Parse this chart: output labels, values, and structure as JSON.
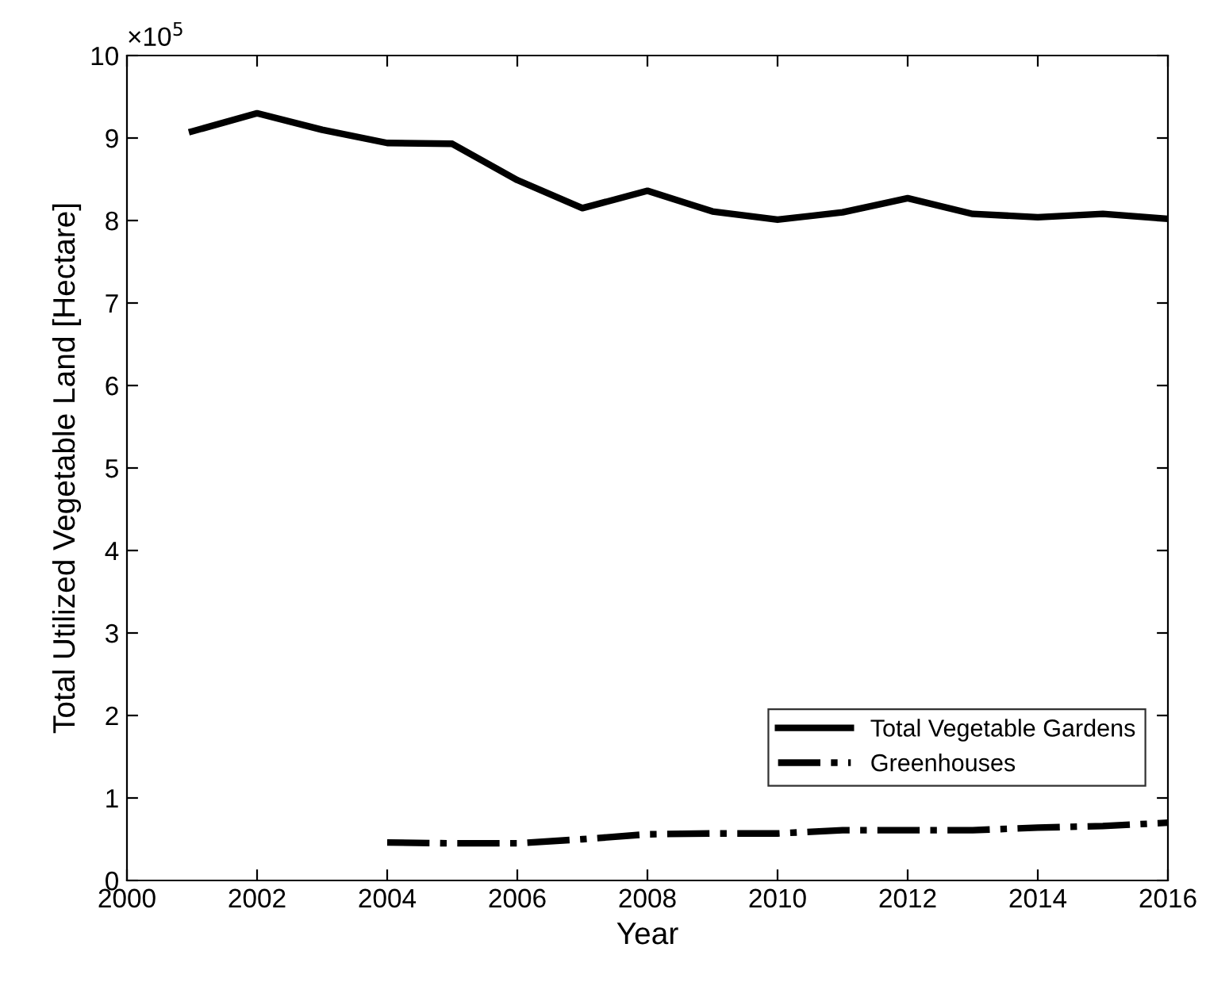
{
  "chart_data": {
    "type": "line",
    "xlabel": "Year",
    "ylabel": "Total Utilized Vegetable Land [Hectare]",
    "annotations": [
      "×10$^{5}$"
    ],
    "xlim": [
      2000,
      2016
    ],
    "xticks": [
      2000,
      2002,
      2004,
      2006,
      2008,
      2010,
      2012,
      2014,
      2016
    ],
    "ylim": [
      0,
      10
    ],
    "yticks": [
      0,
      1,
      2,
      3,
      4,
      5,
      6,
      7,
      8,
      9,
      10
    ],
    "grid": false,
    "legend": "bottom right",
    "marker": "none",
    "series": [
      {
        "name": "Total Vegetable Gardens",
        "color": "#000000",
        "line_style": "solid",
        "x": [
          2001,
          2002,
          2003,
          2004,
          2005,
          2006,
          2007,
          2008,
          2009,
          2010,
          2011,
          2012,
          2013,
          2014,
          2015,
          2016
        ],
        "values": [
          9.08,
          9.3,
          9.1,
          8.94,
          8.93,
          8.49,
          8.15,
          8.36,
          8.11,
          8.01,
          8.1,
          8.27,
          8.08,
          8.04,
          8.08,
          8.02
        ]
      },
      {
        "name": "Greenhouses",
        "color": "#000000",
        "line_style": "dashdot",
        "x": [
          2004,
          2005,
          2006,
          2007,
          2008,
          2009,
          2010,
          2011,
          2012,
          2013,
          2014,
          2015,
          2016
        ],
        "values": [
          0.46,
          0.45,
          0.45,
          0.5,
          0.56,
          0.57,
          0.57,
          0.61,
          0.61,
          0.61,
          0.64,
          0.66,
          0.7
        ]
      }
    ]
  }
}
